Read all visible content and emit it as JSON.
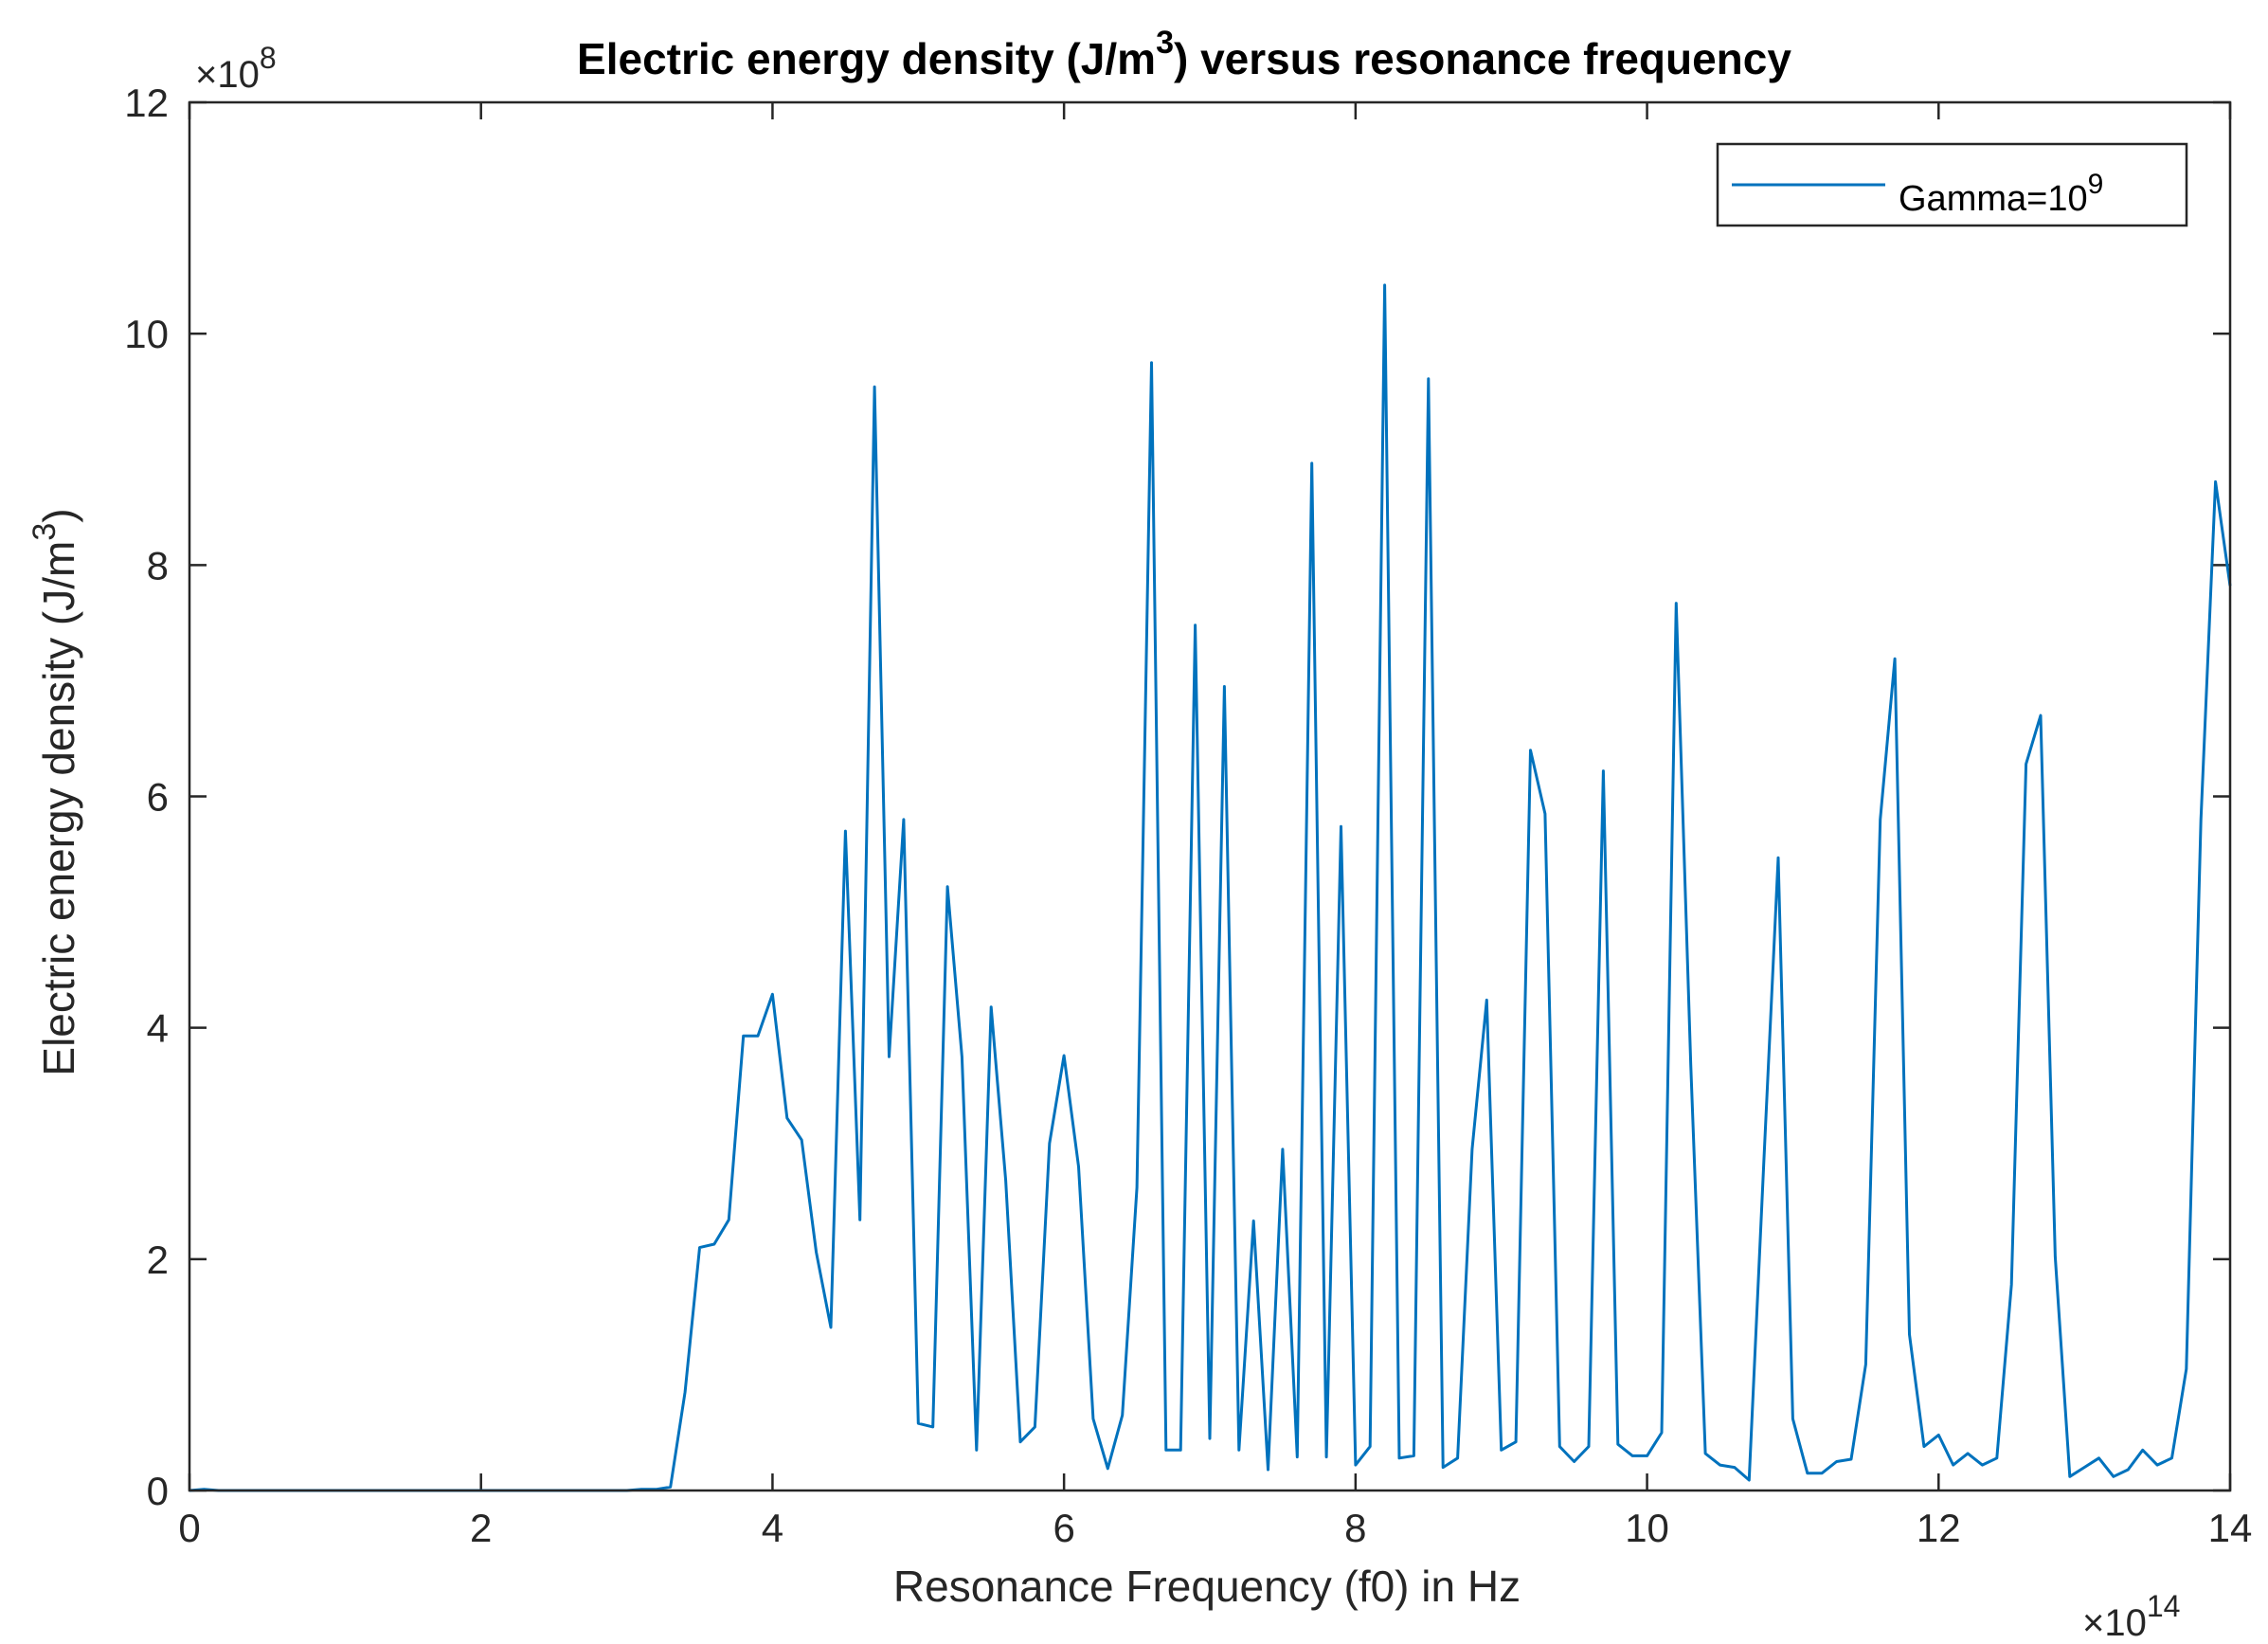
{
  "chart_data": {
    "type": "line",
    "title": "Electric energy density (J/m3) versus resonance frequency",
    "title_parts": {
      "before_sup": "Electric energy density (J/m",
      "sup": "3",
      "after_sup": ") versus resonance frequency"
    },
    "xlabel": "Resonance Frequency (f0) in Hz",
    "ylabel": "Electric energy density (J/m3)",
    "ylabel_parts": {
      "before_sup": "Electric energy density (J/m",
      "sup": "3",
      "after_sup": ")"
    },
    "x_multiplier": {
      "base": "×10",
      "exp": "14"
    },
    "y_multiplier": {
      "base": "×10",
      "exp": "8"
    },
    "xlim": [
      0,
      14
    ],
    "ylim": [
      0,
      12
    ],
    "xticks": [
      0,
      2,
      4,
      6,
      8,
      10,
      12,
      14
    ],
    "yticks": [
      0,
      2,
      4,
      6,
      8,
      10,
      12
    ],
    "grid": false,
    "legend_position": "top-right",
    "series": [
      {
        "name": "Gamma=10^9",
        "legend_parts": {
          "base": "Gamma=10",
          "sup": "9"
        },
        "color": "#0072BD",
        "x": [
          0,
          0.1,
          0.2,
          0.3,
          0.4,
          0.5,
          0.6,
          0.7,
          0.8,
          0.9,
          1.0,
          1.1,
          1.2,
          1.3,
          1.4,
          1.5,
          1.6,
          1.7,
          1.8,
          1.9,
          2.0,
          2.1,
          2.2,
          2.3,
          2.4,
          2.5,
          2.6,
          2.7,
          2.8,
          2.9,
          3.0,
          3.1,
          3.2,
          3.3,
          3.4,
          3.5,
          3.6,
          3.7,
          3.8,
          3.9,
          4.0,
          4.1,
          4.2,
          4.3,
          4.4,
          4.5,
          4.6,
          4.7,
          4.8,
          4.9,
          5.0,
          5.1,
          5.2,
          5.3,
          5.4,
          5.5,
          5.6,
          5.7,
          5.8,
          5.9,
          6.0,
          6.1,
          6.2,
          6.3,
          6.4,
          6.5,
          6.6,
          6.7,
          6.8,
          6.9,
          7.0,
          7.1,
          7.2,
          7.3,
          7.4,
          7.5,
          7.6,
          7.7,
          7.8,
          7.9,
          8.0,
          8.1,
          8.2,
          8.3,
          8.4,
          8.5,
          8.6,
          8.7,
          8.8,
          8.9,
          9.0,
          9.1,
          9.2,
          9.3,
          9.4,
          9.5,
          9.6,
          9.7,
          9.8,
          9.9,
          10.0,
          10.1,
          10.2,
          10.3,
          10.4,
          10.5,
          10.6,
          10.7,
          10.8,
          10.9,
          11.0,
          11.1,
          11.2,
          11.3,
          11.4,
          11.5,
          11.6,
          11.7,
          11.8,
          11.9,
          12.0,
          12.1,
          12.2,
          12.3,
          12.4,
          12.5,
          12.6,
          12.7,
          12.8,
          12.9,
          13.0,
          13.1,
          13.2,
          13.3,
          13.4,
          13.5,
          13.6,
          13.7,
          13.8,
          13.9,
          14.0
        ],
        "values": [
          0,
          0.01,
          0,
          0,
          0,
          0,
          0,
          0,
          0,
          0,
          0,
          0,
          0,
          0,
          0,
          0,
          0,
          0,
          0,
          0,
          0,
          0,
          0,
          0,
          0,
          0,
          0,
          0,
          0,
          0,
          0,
          0.01,
          0.01,
          0.03,
          0.85,
          2.1,
          2.13,
          2.34,
          3.93,
          3.93,
          4.29,
          3.22,
          3.03,
          2.06,
          1.41,
          5.7,
          2.34,
          9.54,
          3.75,
          5.8,
          0.58,
          0.55,
          5.22,
          3.75,
          0.35,
          4.18,
          2.68,
          0.42,
          0.55,
          3.0,
          3.76,
          2.8,
          0.62,
          0.19,
          0.65,
          2.62,
          9.75,
          0.35,
          0.35,
          7.48,
          0.45,
          6.95,
          0.35,
          2.33,
          0.18,
          2.95,
          0.29,
          8.88,
          0.29,
          5.74,
          0.22,
          0.38,
          10.42,
          0.28,
          0.3,
          9.61,
          0.2,
          0.28,
          2.95,
          4.24,
          0.35,
          0.42,
          6.4,
          5.85,
          0.38,
          0.25,
          0.38,
          6.22,
          0.4,
          0.3,
          0.3,
          0.5,
          7.67,
          3.68,
          0.32,
          0.22,
          0.2,
          0.09,
          2.82,
          5.47,
          0.62,
          0.15,
          0.15,
          0.25,
          0.27,
          1.09,
          5.8,
          7.19,
          1.35,
          0.38,
          0.48,
          0.22,
          0.32,
          0.22,
          0.28,
          1.78,
          6.28,
          6.7,
          2.02,
          0.12,
          0.2,
          0.28,
          0.12,
          0.18,
          0.35,
          0.22,
          0.28,
          1.05,
          5.8,
          8.72,
          7.82
        ]
      }
    ]
  }
}
